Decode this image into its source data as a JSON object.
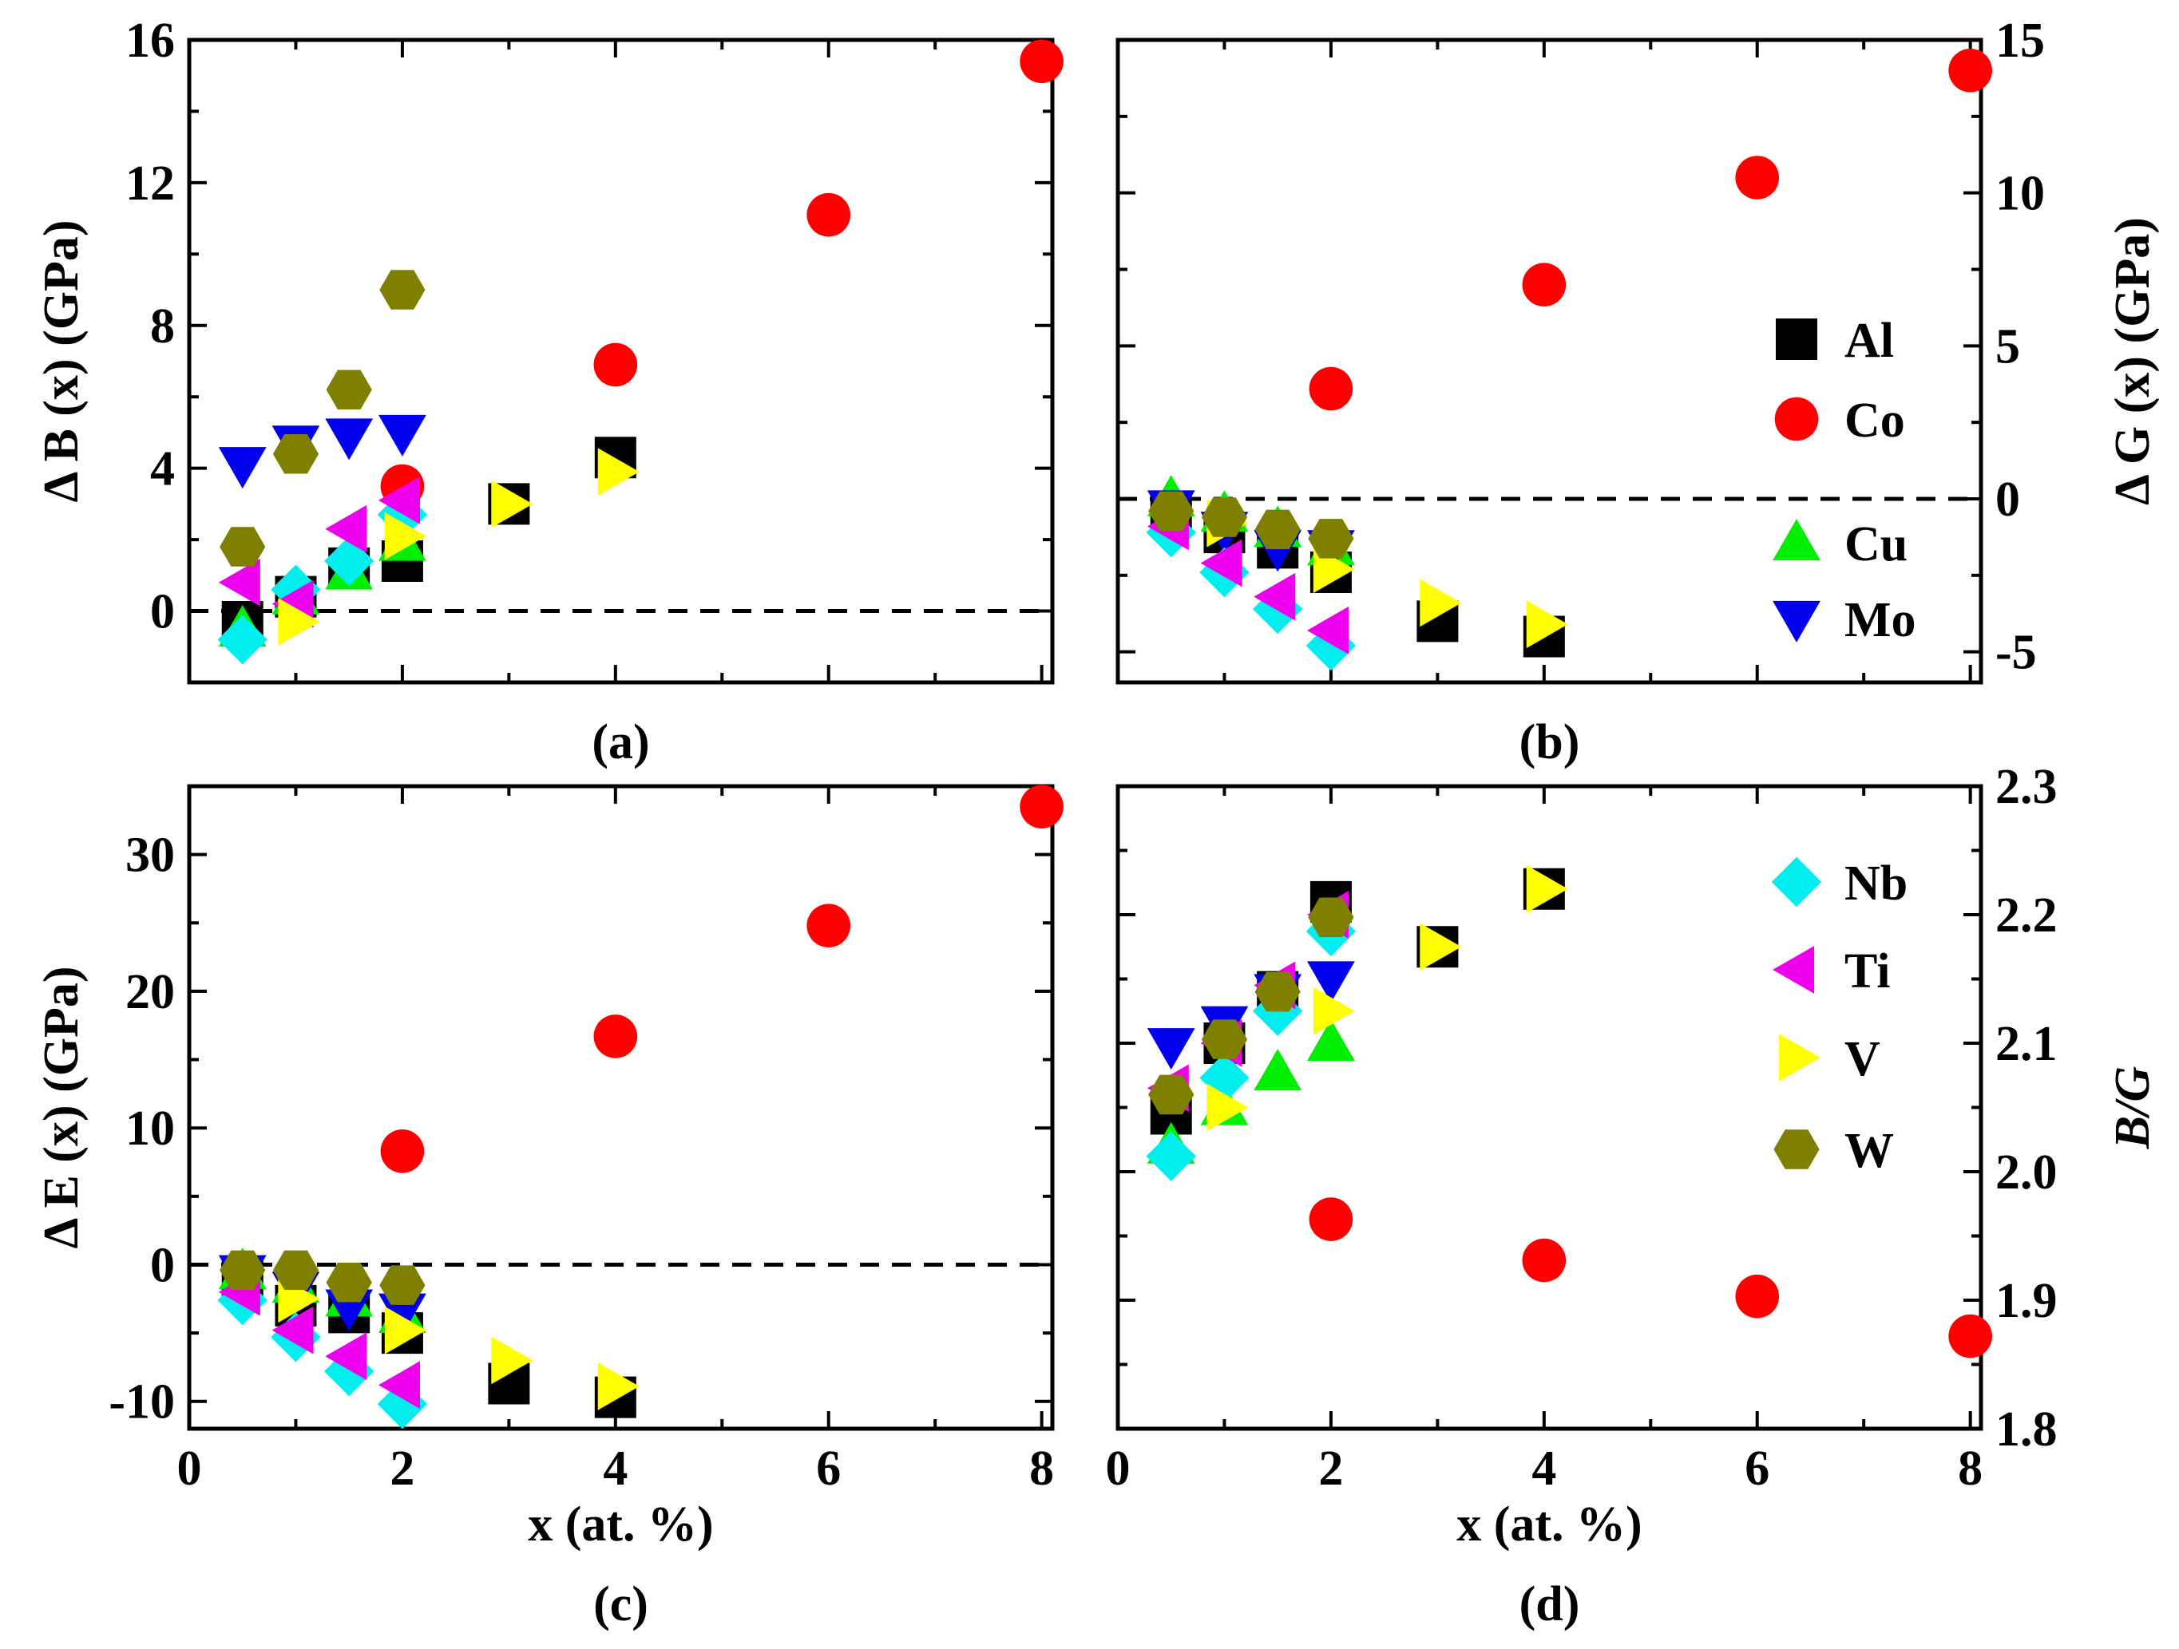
{
  "colors": {
    "Al": "#000000",
    "Co": "#ff0000",
    "Cu": "#00ee00",
    "Mo": "#0000ee",
    "Nb": "#00eeee",
    "Ti": "#ee00ee",
    "V": "#ffff00",
    "W": "#808000"
  },
  "shapes": {
    "Al": "square",
    "Co": "circle",
    "Cu": "triangle-up",
    "Mo": "triangle-down",
    "Nb": "diamond",
    "Ti": "triangle-left",
    "V": "triangle-right",
    "W": "hexagon"
  },
  "chart_data": [
    {
      "id": "a",
      "type": "scatter",
      "panel_label": "(a)",
      "ylabel": "Δ B (x) (GPa)",
      "y_side": "left",
      "xlabel": "",
      "xlim": [
        0,
        8.1
      ],
      "ylim": [
        -2,
        16
      ],
      "xticks": [
        0,
        2,
        4,
        6,
        8
      ],
      "show_xtick_labels": false,
      "yticks": [
        0,
        4,
        8,
        12,
        16
      ],
      "ytick_labels": [
        "0",
        "4",
        "8",
        "12",
        "16"
      ],
      "zero_line": 0,
      "series": [
        {
          "name": "Al",
          "x": [
            0.5,
            1,
            1.5,
            2,
            3,
            4
          ],
          "y": [
            -0.3,
            0.4,
            1.2,
            1.4,
            3.0,
            4.3
          ]
        },
        {
          "name": "Co",
          "x": [
            2,
            4,
            6,
            8
          ],
          "y": [
            3.5,
            6.9,
            11.1,
            15.4
          ]
        },
        {
          "name": "Cu",
          "x": [
            0.5,
            1,
            1.5,
            2
          ],
          "y": [
            -0.5,
            0.4,
            1.1,
            1.9
          ]
        },
        {
          "name": "Mo",
          "x": [
            0.5,
            1,
            1.5,
            2
          ],
          "y": [
            4.1,
            4.7,
            4.9,
            5.0
          ]
        },
        {
          "name": "Nb",
          "x": [
            0.5,
            1,
            1.5,
            2
          ],
          "y": [
            -0.8,
            0.6,
            1.4,
            2.7
          ]
        },
        {
          "name": "Ti",
          "x": [
            0.5,
            1,
            1.5,
            2
          ],
          "y": [
            0.8,
            0.2,
            2.3,
            3.1
          ]
        },
        {
          "name": "V",
          "x": [
            1,
            2,
            3,
            4
          ],
          "y": [
            -0.3,
            2.1,
            3.0,
            3.9
          ]
        },
        {
          "name": "W",
          "x": [
            0.5,
            1,
            1.5,
            2
          ],
          "y": [
            1.8,
            4.4,
            6.2,
            9.0
          ]
        }
      ]
    },
    {
      "id": "b",
      "type": "scatter",
      "panel_label": "(b)",
      "ylabel": "Δ G (x) (GPa)",
      "y_side": "right",
      "xlabel": "",
      "xlim": [
        0,
        8.1
      ],
      "ylim": [
        -6,
        15
      ],
      "xticks": [
        0,
        2,
        4,
        6,
        8
      ],
      "show_xtick_labels": false,
      "yticks": [
        -5,
        0,
        5,
        10,
        15
      ],
      "ytick_labels": [
        "-5",
        "0",
        "5",
        "10",
        "15"
      ],
      "zero_line": 0,
      "series": [
        {
          "name": "Al",
          "x": [
            0.5,
            1,
            1.5,
            2,
            3,
            4
          ],
          "y": [
            -0.5,
            -1.1,
            -1.6,
            -2.4,
            -4.0,
            -4.5
          ]
        },
        {
          "name": "Co",
          "x": [
            2,
            4,
            6,
            8
          ],
          "y": [
            3.6,
            7.0,
            10.5,
            14.0
          ]
        },
        {
          "name": "Cu",
          "x": [
            0.5,
            1,
            1.5,
            2
          ],
          "y": [
            0.0,
            -0.5,
            -1.0,
            -1.6
          ]
        },
        {
          "name": "Mo",
          "x": [
            0.5,
            1,
            1.5,
            2
          ],
          "y": [
            -0.3,
            -1.0,
            -1.6,
            -1.6
          ]
        },
        {
          "name": "Nb",
          "x": [
            0.5,
            1,
            1.5,
            2
          ],
          "y": [
            -1.1,
            -2.4,
            -3.6,
            -4.8
          ]
        },
        {
          "name": "Ti",
          "x": [
            0.5,
            1,
            1.5,
            2
          ],
          "y": [
            -0.9,
            -2.1,
            -3.2,
            -4.3
          ]
        },
        {
          "name": "V",
          "x": [
            1,
            2,
            3,
            4
          ],
          "y": [
            -0.8,
            -2.3,
            -3.4,
            -4.1
          ]
        },
        {
          "name": "W",
          "x": [
            0.5,
            1,
            1.5,
            2
          ],
          "y": [
            -0.4,
            -0.6,
            -1.0,
            -1.3
          ]
        }
      ]
    },
    {
      "id": "c",
      "type": "scatter",
      "panel_label": "(c)",
      "ylabel": "Δ E (x) (GPa)",
      "y_side": "left",
      "xlabel": "x (at. %)",
      "xlim": [
        0,
        8.1
      ],
      "ylim": [
        -12,
        35
      ],
      "xticks": [
        0,
        2,
        4,
        6,
        8
      ],
      "show_xtick_labels": true,
      "xtick_labels": [
        "0",
        "2",
        "4",
        "6",
        "8"
      ],
      "yticks": [
        -10,
        0,
        10,
        20,
        30
      ],
      "ytick_labels": [
        "-10",
        "0",
        "10",
        "20",
        "30"
      ],
      "zero_line": 0,
      "series": [
        {
          "name": "Al",
          "x": [
            0.5,
            1,
            1.5,
            2,
            3,
            4
          ],
          "y": [
            -1.0,
            -3.0,
            -3.5,
            -5.0,
            -8.7,
            -9.7
          ]
        },
        {
          "name": "Co",
          "x": [
            2,
            4,
            6,
            8
          ],
          "y": [
            8.3,
            16.7,
            24.8,
            33.5
          ]
        },
        {
          "name": "Cu",
          "x": [
            0.5,
            1,
            1.5,
            2
          ],
          "y": [
            -0.5,
            -1.5,
            -2.5,
            -3.7
          ]
        },
        {
          "name": "Mo",
          "x": [
            0.5,
            1,
            1.5,
            2
          ],
          "y": [
            -0.6,
            -1.8,
            -3.1,
            -3.4
          ]
        },
        {
          "name": "Nb",
          "x": [
            0.5,
            1,
            1.5,
            2
          ],
          "y": [
            -2.6,
            -5.3,
            -7.8,
            -10.2
          ]
        },
        {
          "name": "Ti",
          "x": [
            0.5,
            1,
            1.5,
            2
          ],
          "y": [
            -2.0,
            -4.8,
            -6.7,
            -8.8
          ]
        },
        {
          "name": "V",
          "x": [
            1,
            2,
            3,
            4
          ],
          "y": [
            -2.5,
            -4.8,
            -7.0,
            -8.9
          ]
        },
        {
          "name": "W",
          "x": [
            0.5,
            1,
            1.5,
            2
          ],
          "y": [
            -0.4,
            -0.4,
            -1.3,
            -1.5
          ]
        }
      ]
    },
    {
      "id": "d",
      "type": "scatter",
      "panel_label": "(d)",
      "ylabel": "B/G",
      "y_side": "right",
      "xlabel": "x (at. %)",
      "xlim": [
        0,
        8.1
      ],
      "ylim": [
        1.8,
        2.3
      ],
      "xticks": [
        0,
        2,
        4,
        6,
        8
      ],
      "show_xtick_labels": true,
      "xtick_labels": [
        "0",
        "2",
        "4",
        "6",
        "8"
      ],
      "yticks": [
        1.8,
        1.9,
        2.0,
        2.1,
        2.2,
        2.3
      ],
      "ytick_labels": [
        "1.8",
        "1.9",
        "2.0",
        "2.1",
        "2.2",
        "2.3"
      ],
      "zero_line": null,
      "series": [
        {
          "name": "Al",
          "x": [
            0.5,
            1,
            1.5,
            2,
            3,
            4
          ],
          "y": [
            2.045,
            2.1,
            2.14,
            2.21,
            2.175,
            2.22
          ]
        },
        {
          "name": "Co",
          "x": [
            2,
            4,
            6,
            8
          ],
          "y": [
            1.963,
            1.931,
            1.903,
            1.872
          ]
        },
        {
          "name": "Cu",
          "x": [
            0.5,
            1,
            1.5,
            2
          ],
          "y": [
            2.02,
            2.05,
            2.077,
            2.1
          ]
        },
        {
          "name": "Mo",
          "x": [
            0.5,
            1,
            1.5,
            2
          ],
          "y": [
            2.098,
            2.115,
            2.14,
            2.15
          ]
        },
        {
          "name": "Nb",
          "x": [
            0.5,
            1,
            1.5,
            2
          ],
          "y": [
            2.012,
            2.073,
            2.125,
            2.187
          ]
        },
        {
          "name": "Ti",
          "x": [
            0.5,
            1,
            1.5,
            2
          ],
          "y": [
            2.065,
            2.1,
            2.145,
            2.2
          ]
        },
        {
          "name": "V",
          "x": [
            1,
            2,
            3,
            4
          ],
          "y": [
            2.05,
            2.125,
            2.175,
            2.22
          ]
        },
        {
          "name": "W",
          "x": [
            0.5,
            1,
            1.5,
            2
          ],
          "y": [
            2.06,
            2.103,
            2.14,
            2.198
          ]
        }
      ]
    }
  ],
  "legends": [
    {
      "panel": "b",
      "entries": [
        "Al",
        "Co",
        "Cu",
        "Mo"
      ]
    },
    {
      "panel": "d",
      "entries": [
        "Nb",
        "Ti",
        "V",
        "W"
      ]
    }
  ]
}
